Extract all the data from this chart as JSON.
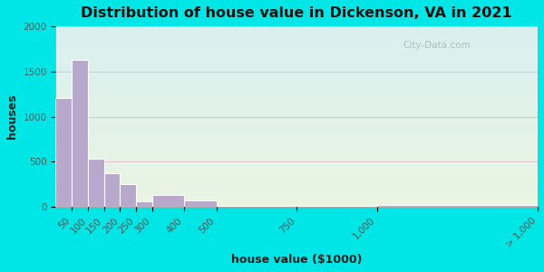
{
  "title": "Distribution of house value in Dickenson, VA in 2021",
  "xlabel": "house value ($1000)",
  "ylabel": "houses",
  "bin_edges": [
    0,
    50,
    100,
    150,
    200,
    250,
    300,
    400,
    500,
    750,
    1000,
    1500
  ],
  "tick_positions": [
    50,
    100,
    150,
    200,
    250,
    300,
    400,
    500,
    750,
    1000,
    1500
  ],
  "tick_labels": [
    "50",
    "100",
    "150",
    "200",
    "250",
    "300",
    "400",
    "500",
    "750",
    "1,000",
    "> 1,000"
  ],
  "values": [
    1210,
    1630,
    530,
    370,
    250,
    60,
    130,
    70,
    15,
    10,
    20
  ],
  "bar_color": "#b8a8cc",
  "bar_edge_color": "#ffffff",
  "background_outer": "#00e5e5",
  "background_inner_top": "#eaf5e2",
  "background_inner_bottom": "#daf0f0",
  "grid_color": "#ddbbcc",
  "ylim": [
    0,
    2000
  ],
  "yticks": [
    0,
    500,
    1000,
    1500,
    2000
  ],
  "xlim": [
    0,
    1500
  ],
  "title_fontsize": 11.5,
  "axis_label_fontsize": 9,
  "tick_fontsize": 7.5,
  "watermark": "City-Data.com"
}
